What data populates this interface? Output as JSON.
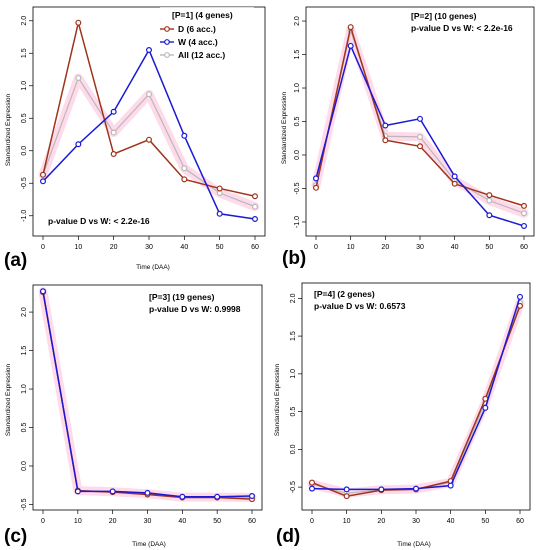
{
  "colors": {
    "D": "#a0341b",
    "W": "#1a1ad4",
    "All": "#b9b9b9",
    "All_band": "#ffd1e6",
    "D_err": "#e08a8a",
    "W_err": "#9a9aee"
  },
  "legend": {
    "title": "[P=1] (4 genes)",
    "entries": [
      {
        "key": "D",
        "label": "D (6 acc.)"
      },
      {
        "key": "W",
        "label": "W (4 acc.)"
      },
      {
        "key": "All",
        "label": "All (12 acc.)"
      }
    ]
  },
  "chart_data": [
    {
      "type": "line",
      "panel_label": "(a)",
      "annotation": "p-value D vs W: < 2.2e-16",
      "xlabel": "Time (DAA)",
      "ylabel": "Standardized Expression",
      "x": [
        0,
        10,
        20,
        30,
        40,
        50,
        60
      ],
      "xlim": [
        0,
        60
      ],
      "ylim": [
        -1.25,
        2.15
      ],
      "yticks": [
        -1.0,
        -0.5,
        0.0,
        0.5,
        1.0,
        1.5,
        2.0
      ],
      "series": [
        {
          "name": "D (6 acc.)",
          "key": "D",
          "values": [
            -0.37,
            1.97,
            -0.05,
            0.17,
            -0.44,
            -0.58,
            -0.7
          ]
        },
        {
          "name": "W (4 acc.)",
          "key": "W",
          "values": [
            -0.47,
            0.1,
            0.6,
            1.55,
            0.23,
            -0.97,
            -1.05
          ]
        },
        {
          "name": "All (12 acc.)",
          "key": "All",
          "values": [
            -0.37,
            1.12,
            0.28,
            0.87,
            -0.27,
            -0.65,
            -0.86
          ]
        }
      ]
    },
    {
      "type": "line",
      "panel_label": "(b)",
      "annotation_lines": [
        "[P=2] (10 genes)",
        "p-value D vs W: < 2.2e-16"
      ],
      "xlabel": "Time (DAA)",
      "ylabel": "Standardized Expression",
      "x": [
        0,
        10,
        20,
        30,
        40,
        50,
        60
      ],
      "xlim": [
        0,
        60
      ],
      "ylim": [
        -1.15,
        2.15
      ],
      "yticks": [
        -1.0,
        -0.5,
        0.0,
        0.5,
        1.0,
        1.5,
        2.0
      ],
      "series": [
        {
          "name": "D",
          "key": "D",
          "values": [
            -0.49,
            1.91,
            0.22,
            0.13,
            -0.43,
            -0.6,
            -0.76
          ]
        },
        {
          "name": "W",
          "key": "W",
          "values": [
            -0.35,
            1.63,
            0.44,
            0.54,
            -0.32,
            -0.9,
            -1.06
          ]
        },
        {
          "name": "All",
          "key": "All",
          "values": [
            -0.45,
            1.86,
            0.28,
            0.27,
            -0.38,
            -0.68,
            -0.87
          ]
        }
      ]
    },
    {
      "type": "line",
      "panel_label": "(c)",
      "annotation_lines": [
        "[P=3] (19 genes)",
        "p-value D vs W: 0.9998"
      ],
      "xlabel": "Time (DAA)",
      "ylabel": "Standardized Expression",
      "x": [
        0,
        10,
        20,
        30,
        40,
        50,
        60
      ],
      "xlim": [
        0,
        60
      ],
      "ylim": [
        -0.52,
        2.3
      ],
      "yticks": [
        -0.5,
        0.0,
        0.5,
        1.0,
        1.5,
        2.0
      ],
      "series": [
        {
          "name": "D",
          "key": "D",
          "values": [
            2.26,
            -0.32,
            -0.34,
            -0.37,
            -0.41,
            -0.41,
            -0.43
          ]
        },
        {
          "name": "W",
          "key": "W",
          "values": [
            2.27,
            -0.33,
            -0.33,
            -0.35,
            -0.4,
            -0.4,
            -0.39
          ]
        },
        {
          "name": "All",
          "key": "All",
          "values": [
            2.265,
            -0.32,
            -0.335,
            -0.36,
            -0.405,
            -0.405,
            -0.41
          ]
        }
      ]
    },
    {
      "type": "line",
      "panel_label": "(d)",
      "annotation_lines": [
        "[P=4] (2 genes)",
        "p-value D vs W: 0.6573"
      ],
      "xlabel": "Time (DAA)",
      "ylabel": "Standardized Expression",
      "x": [
        0,
        10,
        20,
        30,
        40,
        50,
        60
      ],
      "xlim": [
        0,
        60
      ],
      "ylim": [
        -0.75,
        2.15
      ],
      "yticks": [
        -0.5,
        0.0,
        0.5,
        1.0,
        1.5,
        2.0
      ],
      "series": [
        {
          "name": "D",
          "key": "D",
          "values": [
            -0.44,
            -0.62,
            -0.54,
            -0.53,
            -0.42,
            0.67,
            1.9
          ]
        },
        {
          "name": "W",
          "key": "W",
          "values": [
            -0.52,
            -0.53,
            -0.53,
            -0.52,
            -0.48,
            0.55,
            2.02
          ]
        },
        {
          "name": "All",
          "key": "All",
          "values": [
            -0.46,
            -0.58,
            -0.535,
            -0.525,
            -0.44,
            0.62,
            1.94
          ]
        }
      ]
    }
  ]
}
